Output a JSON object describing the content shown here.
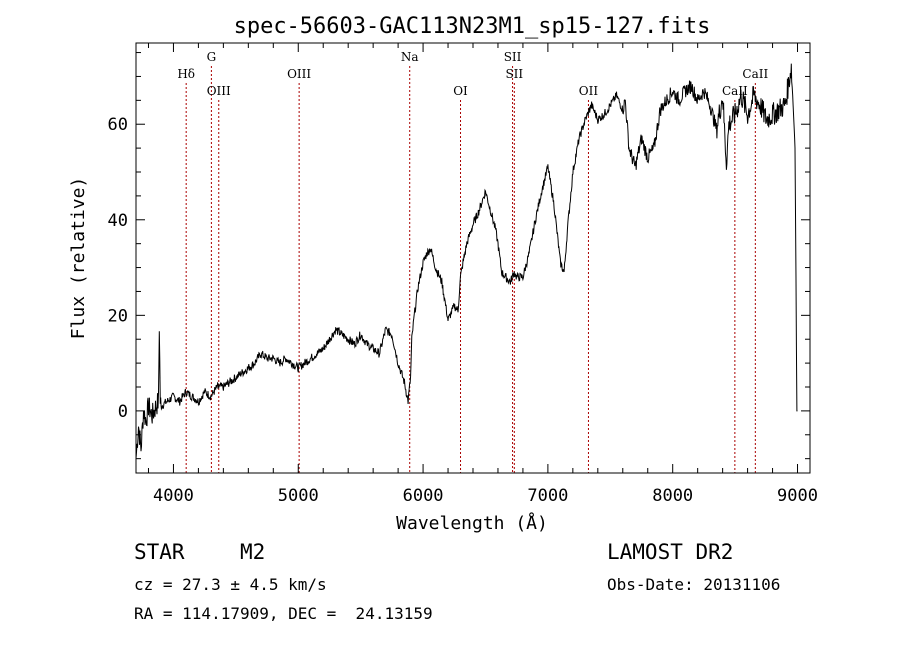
{
  "chart_data": {
    "type": "line",
    "title": "spec-56603-GAC113N23M1_sp15-127.fits",
    "xlabel": "Wavelength (Å)",
    "ylabel": "Flux (relative)",
    "xlim": [
      3700,
      9100
    ],
    "ylim": [
      -13,
      77
    ],
    "xticks": [
      4000,
      5000,
      6000,
      7000,
      8000,
      9000
    ],
    "yticks": [
      0,
      20,
      40,
      60
    ],
    "grid": false,
    "series": [
      {
        "x": [
          3700,
          3720,
          3740,
          3760,
          3780,
          3800,
          3830,
          3860,
          3880,
          3887,
          3895,
          3900,
          3950,
          4000,
          4050,
          4100,
          4150,
          4200,
          4250,
          4300,
          4350,
          4400,
          4450,
          4500,
          4550,
          4600,
          4650,
          4700,
          4750,
          4800,
          4850,
          4900,
          4950,
          5000,
          5050,
          5100,
          5150,
          5200,
          5250,
          5300,
          5350,
          5400,
          5450,
          5500,
          5550,
          5600,
          5650,
          5700,
          5750,
          5800,
          5850,
          5880,
          5900,
          5910,
          5930,
          5960,
          6000,
          6030,
          6060,
          6100,
          6150,
          6200,
          6250,
          6280,
          6300,
          6320,
          6350,
          6400,
          6450,
          6500,
          6550,
          6580,
          6600,
          6630,
          6660,
          6700,
          6730,
          6750,
          6800,
          6850,
          6900,
          6950,
          7000,
          7050,
          7100,
          7130,
          7160,
          7200,
          7250,
          7300,
          7350,
          7400,
          7450,
          7500,
          7550,
          7600,
          7620,
          7650,
          7700,
          7750,
          7800,
          7850,
          7900,
          7950,
          8000,
          8050,
          8100,
          8150,
          8200,
          8250,
          8300,
          8350,
          8400,
          8430,
          8450,
          8500,
          8550,
          8600,
          8650,
          8700,
          8750,
          8800,
          8850,
          8900,
          8950,
          8965,
          8980,
          8995,
          9000
        ],
        "y": [
          -10,
          -3,
          -8,
          0,
          -2,
          1,
          -1,
          1,
          2,
          18,
          2,
          1,
          2,
          3,
          2,
          4,
          3,
          2,
          4,
          3,
          5,
          5,
          6,
          7,
          8,
          9,
          10,
          12,
          11,
          11,
          10,
          11,
          10,
          9,
          10,
          11,
          12,
          13,
          15,
          17,
          16,
          15,
          14,
          16,
          14,
          13,
          12,
          17,
          16,
          10,
          6,
          2,
          7,
          15,
          20,
          26,
          31,
          33,
          34,
          30,
          27,
          19,
          22,
          21,
          28,
          31,
          35,
          39,
          42,
          46,
          41,
          38,
          35,
          29,
          28,
          27,
          29,
          28,
          28,
          33,
          40,
          46,
          51,
          43,
          31,
          29,
          39,
          50,
          57,
          61,
          64,
          61,
          62,
          64,
          66,
          63,
          65,
          55,
          51,
          57,
          53,
          55,
          63,
          65,
          67,
          65,
          67,
          68,
          65,
          67,
          64,
          59,
          66,
          52,
          60,
          62,
          66,
          62,
          66,
          64,
          61,
          62,
          63,
          64,
          72,
          64,
          55,
          0,
          0
        ]
      }
    ],
    "annotations": [
      {
        "label": "Hδ",
        "x": 4102,
        "row": 2
      },
      {
        "label": "G",
        "x": 4304,
        "row": 1
      },
      {
        "label": "OIII",
        "x": 4363,
        "row": 3
      },
      {
        "label": "OIII",
        "x": 5007,
        "row": 2
      },
      {
        "label": "Na",
        "x": 5893,
        "row": 1
      },
      {
        "label": "OI",
        "x": 6300,
        "row": 3
      },
      {
        "label": "SII",
        "x": 6717,
        "row": 1
      },
      {
        "label": "SII",
        "x": 6731,
        "row": 2
      },
      {
        "label": "OII",
        "x": 7325,
        "row": 3
      },
      {
        "label": "CaII",
        "x": 8498,
        "row": 3
      },
      {
        "label": "CaII",
        "x": 8662,
        "row": 2
      }
    ],
    "line_color": "#000000",
    "marker_color": "#aa0000"
  },
  "footer": {
    "object_class": "STAR",
    "subclass": "M2",
    "survey": "LAMOST DR2",
    "redshift": "cz = 27.3 ± 4.5 km/s",
    "obs_date": "Obs-Date: 20131106",
    "coords": "RA = 114.17909, DEC =  24.13159"
  }
}
